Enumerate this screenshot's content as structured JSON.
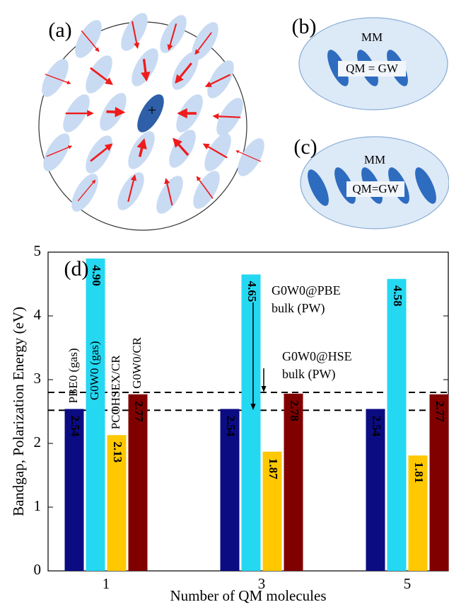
{
  "panels": {
    "a": {
      "label": "(a)",
      "center_text": "+"
    },
    "b": {
      "label": "(b)",
      "outer": "MM",
      "inner": "QM = GW"
    },
    "c": {
      "label": "(c)",
      "outer": "MM",
      "inner": "QM=GW"
    }
  },
  "chart_data": {
    "type": "bar",
    "panel_label": "(d)",
    "x_label": "Number of QM molecules",
    "y_label": "Bandgap, Polarization Energy (eV)",
    "categories": [
      "1",
      "3",
      "5"
    ],
    "series": [
      {
        "name": "PBE0 (gas)",
        "color": "#0b0b82",
        "values": [
          2.54,
          2.54,
          2.54
        ],
        "value_labels": [
          "2.54",
          "2.54",
          "2.54"
        ]
      },
      {
        "name": "G0W0 (gas)",
        "color": "#24d8f2",
        "values": [
          4.9,
          4.65,
          4.58
        ],
        "value_labels": [
          "4.90",
          "4.65",
          "4.58"
        ]
      },
      {
        "name": "PCOHSEX/CR",
        "color": "#ffc800",
        "values": [
          2.13,
          1.87,
          1.81
        ],
        "value_labels": [
          "2.13",
          "1.87",
          "1.81"
        ]
      },
      {
        "name": "G0W0/CR",
        "color": "#800000",
        "values": [
          2.77,
          2.78,
          2.77
        ],
        "value_labels": [
          "2.77",
          "2.78",
          "2.77"
        ]
      }
    ],
    "ylim": [
      0,
      5
    ],
    "yticks": [
      0,
      1,
      2,
      3,
      4,
      5
    ],
    "reference_lines": [
      2.8,
      2.52
    ],
    "annotations": [
      {
        "lines": [
          "G0W0@PBE",
          "bulk (PW)"
        ],
        "value": 2.52
      },
      {
        "lines": [
          "G0W0@HSE",
          "bulk (PW)"
        ],
        "value": 2.8
      }
    ]
  }
}
